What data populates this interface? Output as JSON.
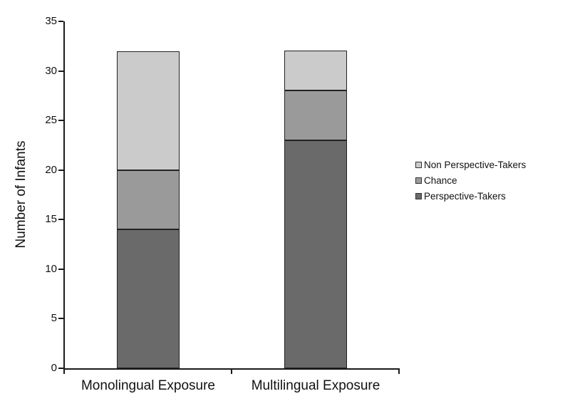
{
  "chart_data": {
    "type": "bar",
    "stacked": true,
    "title": "",
    "xlabel": "",
    "ylabel": "Number of Infants",
    "ylim": [
      0,
      35
    ],
    "yticks": [
      0,
      5,
      10,
      15,
      20,
      25,
      30,
      35
    ],
    "grid": false,
    "legend_position": "right",
    "categories": [
      "Monolingual Exposure",
      "Multilingual Exposure"
    ],
    "series": [
      {
        "name": "Perspective-Takers",
        "values": [
          14,
          23
        ],
        "color": "#6a6a6a"
      },
      {
        "name": "Chance",
        "values": [
          6,
          5
        ],
        "color": "#9a9a9a"
      },
      {
        "name": "Non Perspective-Takers",
        "values": [
          12,
          4
        ],
        "color": "#cbcbcb"
      }
    ],
    "legend_order": [
      "Non Perspective-Takers",
      "Chance",
      "Perspective-Takers"
    ]
  }
}
